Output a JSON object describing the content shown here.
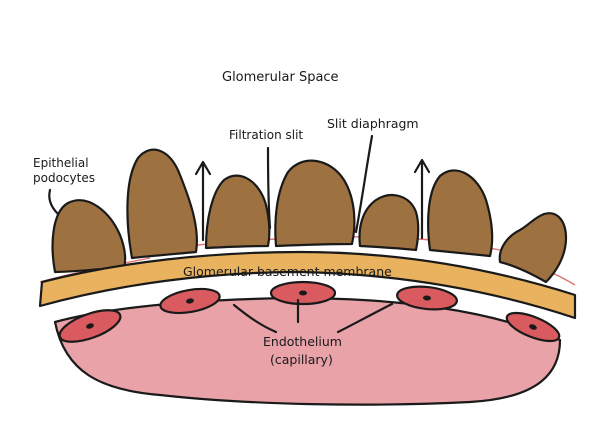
{
  "labels": {
    "space": "Glomerular Space",
    "slit": "Filtration slit",
    "diaphragm": "Slit diaphragm",
    "podo1": "Epithelial",
    "podo2": "podocytes",
    "gbm": "Glomerular basement membrane",
    "endo1": "Endothelium",
    "endo2": "(capillary)"
  },
  "colors": {
    "podocyte": "#9e7240",
    "membrane": "#e8b25e",
    "capillary": "#e8a2a8",
    "endothelial_cell": "#d95b5f",
    "slit_diaphragm": "#e0736f"
  }
}
